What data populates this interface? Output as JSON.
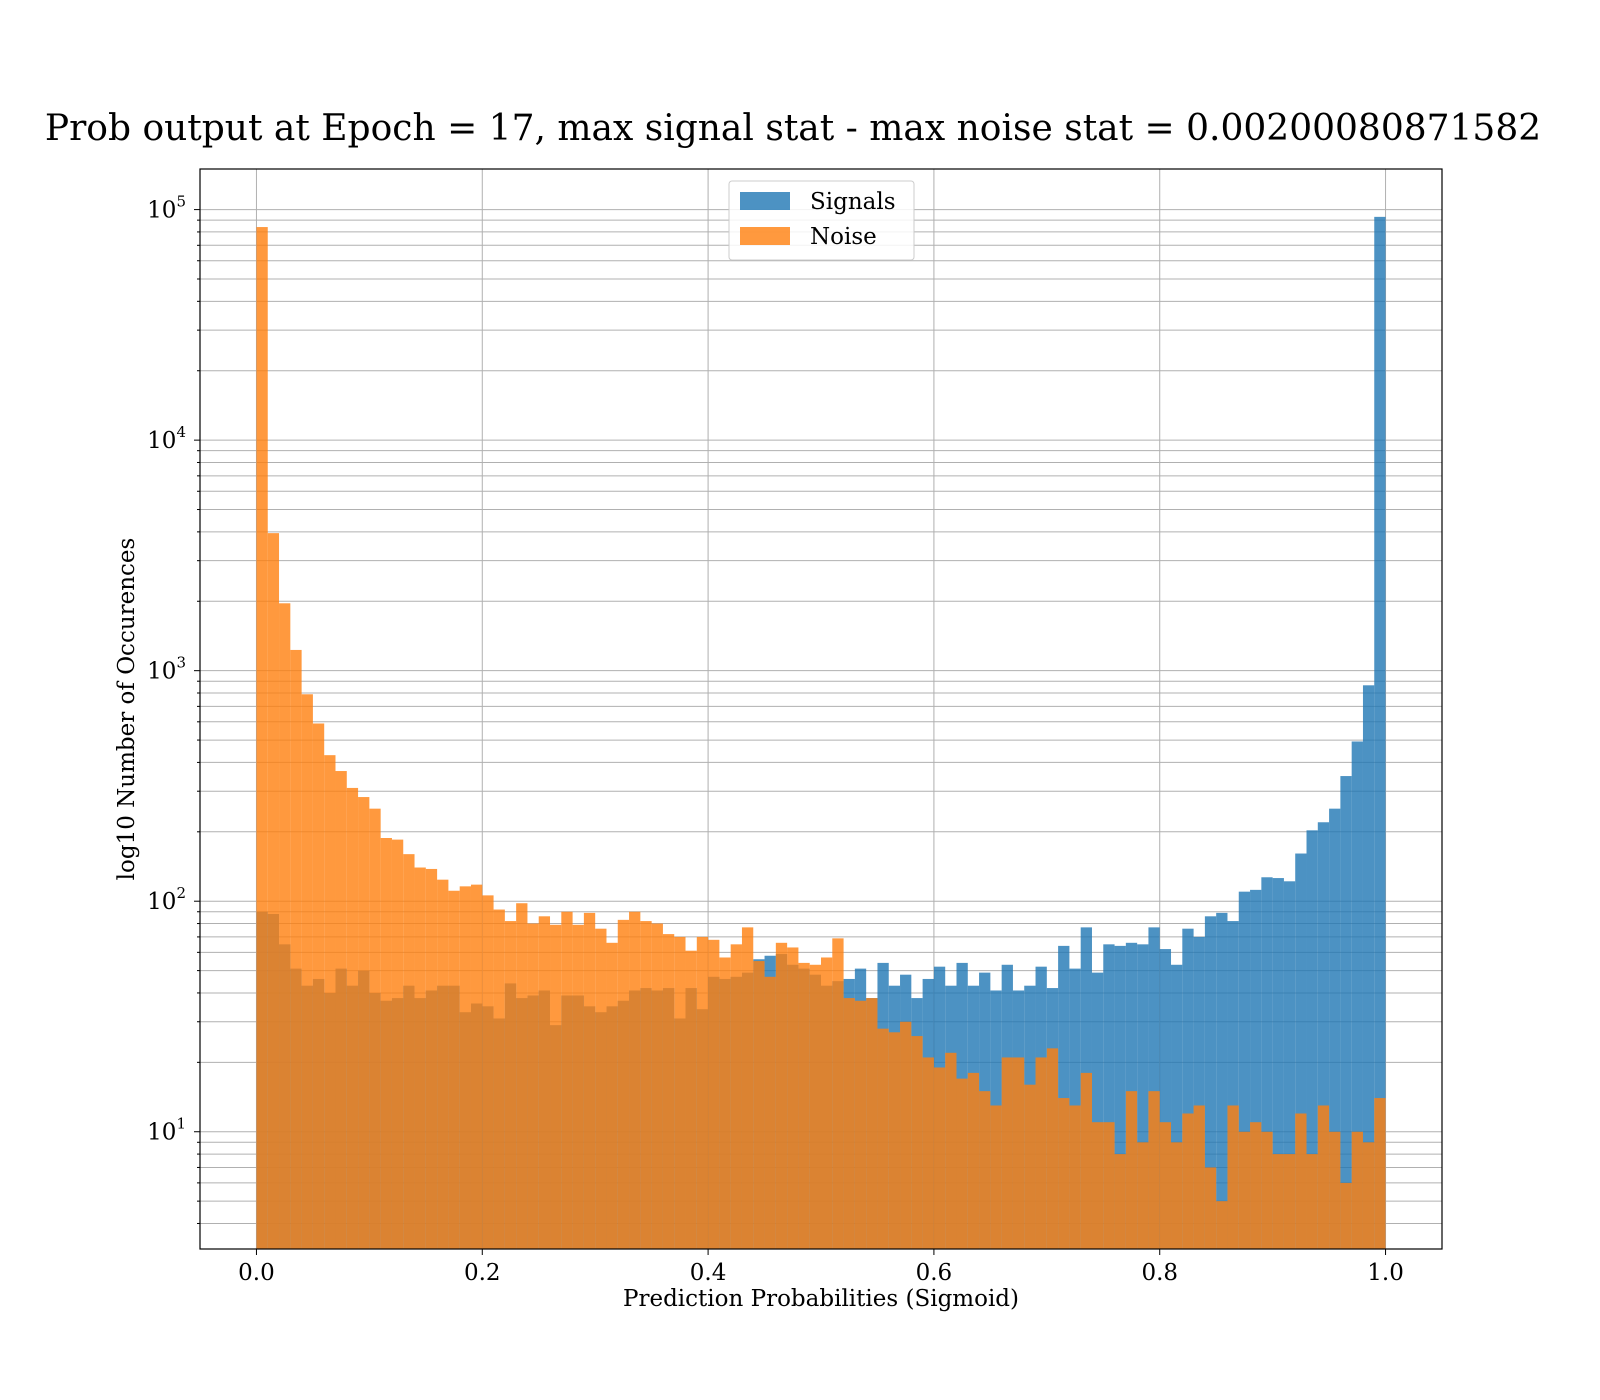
{
  "chart_data": {
    "type": "bar",
    "title": "Prob output at Epoch = 17, max signal stat - max noise stat = 0.00200080871582",
    "xlabel": "Prediction Probabilities (Sigmoid)",
    "ylabel": "log10 Number of Occurences",
    "xlim": [
      -0.05,
      1.05
    ],
    "ylim": [
      3.1,
      150000
    ],
    "yscale": "log",
    "grid": true,
    "legend": "upper-center",
    "bin_width": 0.01,
    "bin_start": 0.0,
    "x_ticks": [
      0.0,
      0.2,
      0.4,
      0.6,
      0.8,
      1.0
    ],
    "x_tick_labels": [
      "0.0",
      "0.2",
      "0.4",
      "0.6",
      "0.8",
      "1.0"
    ],
    "y_ticks": [
      10,
      100,
      1000,
      10000,
      100000
    ],
    "y_tick_labels": [
      {
        "base": "10",
        "exp": "1"
      },
      {
        "base": "10",
        "exp": "2"
      },
      {
        "base": "10",
        "exp": "3"
      },
      {
        "base": "10",
        "exp": "4"
      },
      {
        "base": "10",
        "exp": "5"
      }
    ],
    "series": [
      {
        "name": "Signals",
        "color": "#1f77b4",
        "values": [
          90,
          88,
          65,
          51,
          43,
          46,
          40,
          51,
          43,
          50,
          40,
          37,
          38,
          43,
          38,
          41,
          43,
          43,
          33,
          36,
          35,
          31,
          44,
          38,
          39,
          41,
          29,
          39,
          39,
          35,
          33,
          35,
          37,
          41,
          42,
          41,
          42,
          31,
          42,
          34,
          47,
          46,
          47,
          49,
          56,
          58,
          59,
          53,
          51,
          48,
          43,
          45,
          46,
          51,
          38,
          54,
          43,
          48,
          38,
          46,
          52,
          43,
          54,
          43,
          49,
          41,
          53,
          41,
          43,
          52,
          42,
          64,
          51,
          77,
          49,
          65,
          64,
          66,
          65,
          77,
          62,
          53,
          76,
          70,
          86,
          89,
          82,
          110,
          112,
          127,
          126,
          122,
          161,
          203,
          220,
          252,
          349,
          493,
          864,
          93000
        ]
      },
      {
        "name": "Noise",
        "color": "#ff7f0e",
        "values": [
          84000,
          3950,
          1960,
          1230,
          790,
          590,
          430,
          367,
          310,
          283,
          252,
          188,
          185,
          160,
          140,
          138,
          124,
          111,
          116,
          118,
          106,
          92,
          82,
          98,
          80,
          86,
          79,
          90,
          79,
          89,
          76,
          66,
          83,
          90,
          82,
          80,
          72,
          70,
          61,
          70,
          68,
          57,
          65,
          77,
          55,
          47,
          66,
          63,
          54,
          53,
          57,
          69,
          38,
          37,
          38,
          28,
          27,
          30,
          26,
          21,
          19,
          22,
          17,
          18,
          15,
          13,
          21,
          21,
          16,
          21,
          23,
          14,
          13,
          18,
          11,
          11,
          8,
          15,
          9,
          15,
          11,
          9,
          12,
          13,
          7,
          5,
          13,
          10,
          11,
          10,
          8,
          8,
          12,
          8,
          13,
          10,
          6,
          10,
          9,
          14
        ]
      }
    ]
  }
}
